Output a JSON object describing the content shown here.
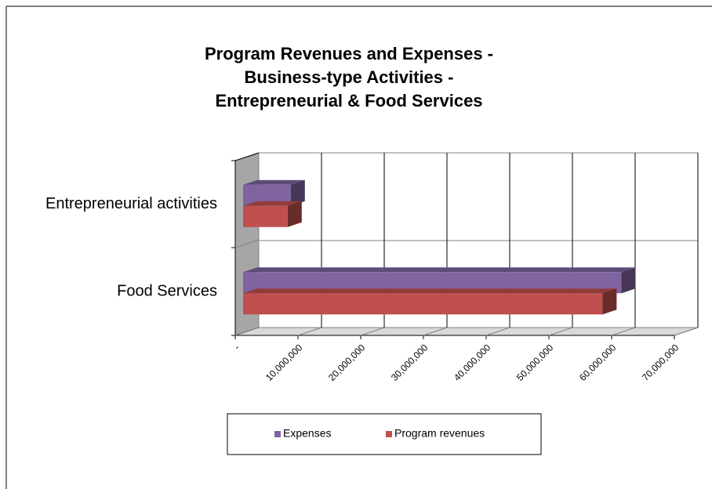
{
  "chart_data": {
    "type": "bar3d-horizontal",
    "title": [
      "Program Revenues and Expenses -",
      "Business-type Activities -",
      "Entrepreneurial & Food Services"
    ],
    "categories": [
      "Entrepreneurial activities",
      "Food Services"
    ],
    "series": [
      {
        "name": "Expenses",
        "color": "#7f64a0",
        "values": [
          7600000,
          60300000
        ]
      },
      {
        "name": "Program revenues",
        "color": "#c0504d",
        "values": [
          7100000,
          57300000
        ]
      }
    ],
    "xlim": [
      0,
      70000000
    ],
    "xticks": [
      {
        "value": 0,
        "label": "-"
      },
      {
        "value": 10000000,
        "label": "10,000,000"
      },
      {
        "value": 20000000,
        "label": "20,000,000"
      },
      {
        "value": 30000000,
        "label": "30,000,000"
      },
      {
        "value": 40000000,
        "label": "40,000,000"
      },
      {
        "value": 50000000,
        "label": "50,000,000"
      },
      {
        "value": 60000000,
        "label": "60,000,000"
      },
      {
        "value": 70000000,
        "label": "70,000,000"
      }
    ],
    "grid": true,
    "legend": "bottom"
  }
}
